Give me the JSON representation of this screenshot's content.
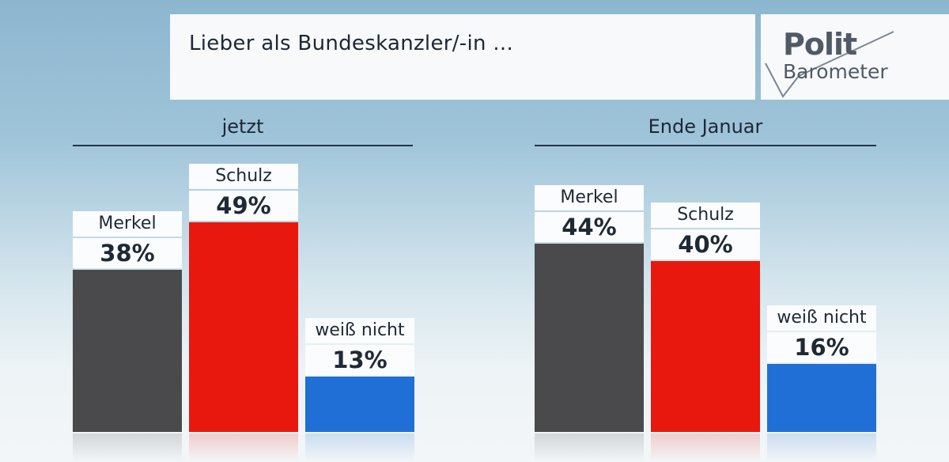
{
  "header": {
    "title": "Lieber als Bundeskanzler/-in ...",
    "logo_line1": "Polit",
    "logo_line2": "Barometer"
  },
  "colors": {
    "merkel": "#4a4a4d",
    "schulz": "#e8180e",
    "weiss_nicht": "#1f6fd6"
  },
  "chart_data": [
    {
      "type": "bar",
      "title": "jetzt",
      "categories": [
        "Merkel",
        "Schulz",
        "weiß nicht"
      ],
      "values": [
        38,
        49,
        13
      ],
      "value_labels": [
        "38%",
        "49%",
        "13%"
      ],
      "unit": "%"
    },
    {
      "type": "bar",
      "title": "Ende Januar",
      "categories": [
        "Merkel",
        "Schulz",
        "weiß nicht"
      ],
      "values": [
        44,
        40,
        16
      ],
      "value_labels": [
        "44%",
        "40%",
        "16%"
      ],
      "unit": "%"
    }
  ]
}
